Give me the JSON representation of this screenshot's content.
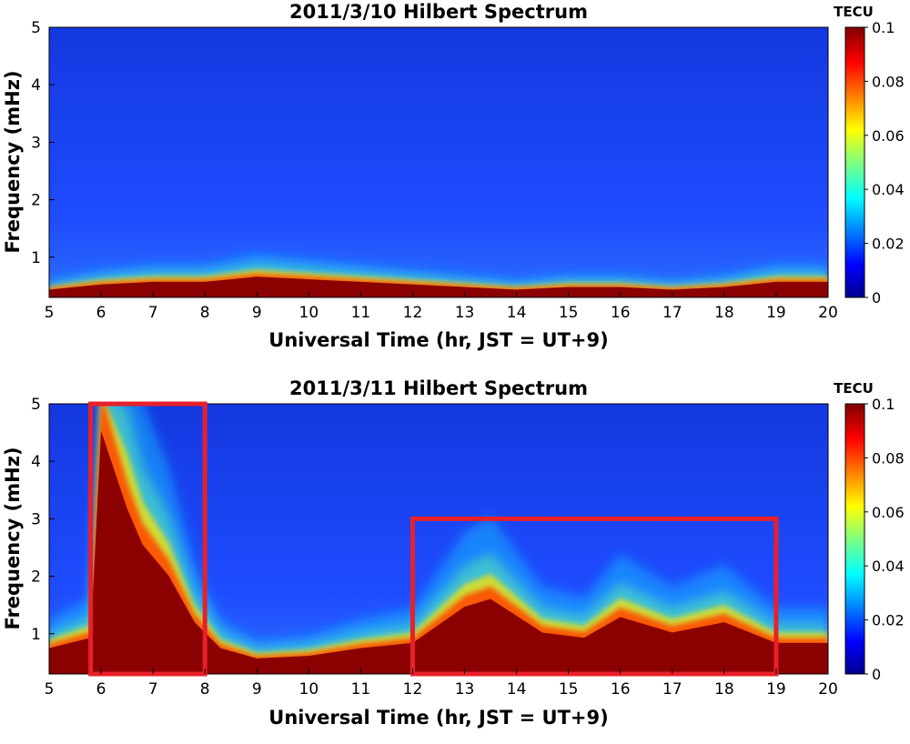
{
  "chart_data": [
    {
      "type": "heatmap",
      "title": "2011/3/10 Hilbert Spectrum",
      "xlabel": "Universal Time (hr, JST = UT+9)",
      "ylabel": "Frequency (mHz)",
      "xlim": [
        5,
        20
      ],
      "ylim": [
        0.3,
        5
      ],
      "xticks": [
        "5",
        "6",
        "7",
        "8",
        "9",
        "10",
        "11",
        "12",
        "13",
        "14",
        "15",
        "16",
        "17",
        "18",
        "19",
        "20"
      ],
      "yticks": [
        "1",
        "2",
        "3",
        "4",
        "5"
      ],
      "colorbar": {
        "label": "TECU",
        "range": [
          0,
          0.1
        ],
        "ticks": [
          "0",
          "0.02",
          "0.04",
          "0.06",
          "0.08",
          "0.1"
        ],
        "colormap": "jet"
      },
      "ridge": [
        {
          "x": 5,
          "y": 0.45
        },
        {
          "x": 6,
          "y": 0.55
        },
        {
          "x": 7,
          "y": 0.6
        },
        {
          "x": 8,
          "y": 0.6
        },
        {
          "x": 9,
          "y": 0.7
        },
        {
          "x": 10,
          "y": 0.65
        },
        {
          "x": 11,
          "y": 0.6
        },
        {
          "x": 12,
          "y": 0.55
        },
        {
          "x": 13,
          "y": 0.5
        },
        {
          "x": 14,
          "y": 0.45
        },
        {
          "x": 15,
          "y": 0.5
        },
        {
          "x": 16,
          "y": 0.5
        },
        {
          "x": 17,
          "y": 0.45
        },
        {
          "x": 18,
          "y": 0.5
        },
        {
          "x": 19,
          "y": 0.6
        },
        {
          "x": 20,
          "y": 0.6
        }
      ],
      "highlight_boxes": []
    },
    {
      "type": "heatmap",
      "title": "2011/3/11 Hilbert Spectrum",
      "xlabel": "Universal Time (hr, JST = UT+9)",
      "ylabel": "Frequency (mHz)",
      "xlim": [
        5,
        20
      ],
      "ylim": [
        0.3,
        5
      ],
      "xticks": [
        "5",
        "6",
        "7",
        "8",
        "9",
        "10",
        "11",
        "12",
        "13",
        "14",
        "15",
        "16",
        "17",
        "18",
        "19",
        "20"
      ],
      "yticks": [
        "1",
        "2",
        "3",
        "4",
        "5"
      ],
      "colorbar": {
        "label": "TECU",
        "range": [
          0,
          0.1
        ],
        "ticks": [
          "0",
          "0.02",
          "0.04",
          "0.06",
          "0.08",
          "0.1"
        ],
        "colormap": "jet"
      },
      "ridge": [
        {
          "x": 5,
          "y": 0.8
        },
        {
          "x": 5.8,
          "y": 1.0
        },
        {
          "x": 6.0,
          "y": 5.0
        },
        {
          "x": 6.5,
          "y": 3.5
        },
        {
          "x": 6.8,
          "y": 2.8
        },
        {
          "x": 7.3,
          "y": 2.2
        },
        {
          "x": 7.8,
          "y": 1.3
        },
        {
          "x": 8.3,
          "y": 0.8
        },
        {
          "x": 9,
          "y": 0.6
        },
        {
          "x": 10,
          "y": 0.65
        },
        {
          "x": 11,
          "y": 0.8
        },
        {
          "x": 12,
          "y": 0.9
        },
        {
          "x": 13,
          "y": 1.6
        },
        {
          "x": 13.5,
          "y": 1.75
        },
        {
          "x": 14.5,
          "y": 1.1
        },
        {
          "x": 15.3,
          "y": 1.0
        },
        {
          "x": 16,
          "y": 1.4
        },
        {
          "x": 17,
          "y": 1.1
        },
        {
          "x": 18,
          "y": 1.3
        },
        {
          "x": 19,
          "y": 0.9
        },
        {
          "x": 20,
          "y": 0.9
        }
      ],
      "highlight_boxes": [
        {
          "x0": 5.8,
          "x1": 8.0,
          "y0": 0.3,
          "y1": 5.0,
          "color": "#e8202a"
        },
        {
          "x0": 12.0,
          "x1": 19.0,
          "y0": 0.3,
          "y1": 3.0,
          "color": "#e8202a"
        }
      ]
    }
  ]
}
